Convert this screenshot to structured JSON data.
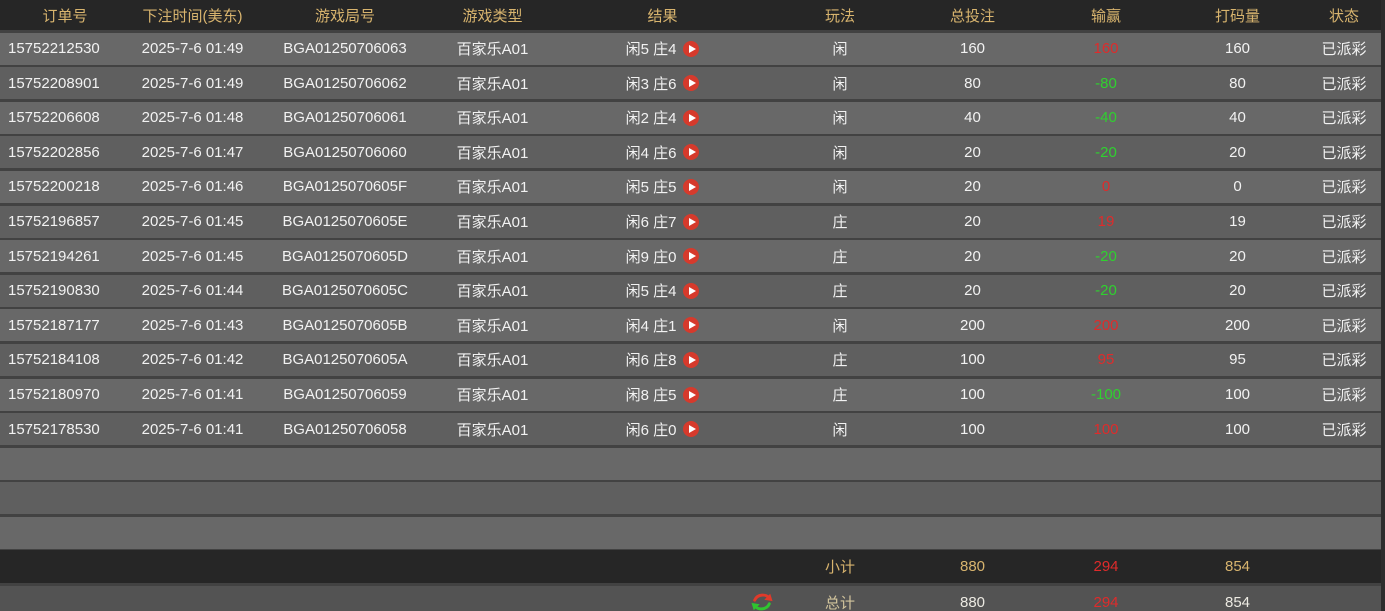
{
  "table": {
    "columns": [
      {
        "key": "order",
        "label": "订单号"
      },
      {
        "key": "time",
        "label": "下注时间(美东)"
      },
      {
        "key": "round",
        "label": "游戏局号"
      },
      {
        "key": "type",
        "label": "游戏类型"
      },
      {
        "key": "result",
        "label": "结果"
      },
      {
        "key": "play",
        "label": "玩法"
      },
      {
        "key": "bet",
        "label": "总投注"
      },
      {
        "key": "winloss",
        "label": "输赢"
      },
      {
        "key": "wager",
        "label": "打码量"
      },
      {
        "key": "status",
        "label": "状态"
      }
    ],
    "rows": [
      {
        "order": "15752212530",
        "time": "2025-7-6 01:49",
        "round": "BGA01250706063",
        "type": "百家乐A01",
        "result": "闲5 庄4",
        "play": "闲",
        "bet": "160",
        "winloss": "160",
        "wager": "160",
        "status": "已派彩"
      },
      {
        "order": "15752208901",
        "time": "2025-7-6 01:49",
        "round": "BGA01250706062",
        "type": "百家乐A01",
        "result": "闲3 庄6",
        "play": "闲",
        "bet": "80",
        "winloss": "-80",
        "wager": "80",
        "status": "已派彩"
      },
      {
        "order": "15752206608",
        "time": "2025-7-6 01:48",
        "round": "BGA01250706061",
        "type": "百家乐A01",
        "result": "闲2 庄4",
        "play": "闲",
        "bet": "40",
        "winloss": "-40",
        "wager": "40",
        "status": "已派彩"
      },
      {
        "order": "15752202856",
        "time": "2025-7-6 01:47",
        "round": "BGA01250706060",
        "type": "百家乐A01",
        "result": "闲4 庄6",
        "play": "闲",
        "bet": "20",
        "winloss": "-20",
        "wager": "20",
        "status": "已派彩"
      },
      {
        "order": "15752200218",
        "time": "2025-7-6 01:46",
        "round": "BGA0125070605F",
        "type": "百家乐A01",
        "result": "闲5 庄5",
        "play": "闲",
        "bet": "20",
        "winloss": "0",
        "wager": "0",
        "status": "已派彩"
      },
      {
        "order": "15752196857",
        "time": "2025-7-6 01:45",
        "round": "BGA0125070605E",
        "type": "百家乐A01",
        "result": "闲6 庄7",
        "play": "庄",
        "bet": "20",
        "winloss": "19",
        "wager": "19",
        "status": "已派彩"
      },
      {
        "order": "15752194261",
        "time": "2025-7-6 01:45",
        "round": "BGA0125070605D",
        "type": "百家乐A01",
        "result": "闲9 庄0",
        "play": "庄",
        "bet": "20",
        "winloss": "-20",
        "wager": "20",
        "status": "已派彩"
      },
      {
        "order": "15752190830",
        "time": "2025-7-6 01:44",
        "round": "BGA0125070605C",
        "type": "百家乐A01",
        "result": "闲5 庄4",
        "play": "庄",
        "bet": "20",
        "winloss": "-20",
        "wager": "20",
        "status": "已派彩"
      },
      {
        "order": "15752187177",
        "time": "2025-7-6 01:43",
        "round": "BGA0125070605B",
        "type": "百家乐A01",
        "result": "闲4 庄1",
        "play": "闲",
        "bet": "200",
        "winloss": "200",
        "wager": "200",
        "status": "已派彩"
      },
      {
        "order": "15752184108",
        "time": "2025-7-6 01:42",
        "round": "BGA0125070605A",
        "type": "百家乐A01",
        "result": "闲6 庄8",
        "play": "庄",
        "bet": "100",
        "winloss": "95",
        "wager": "95",
        "status": "已派彩"
      },
      {
        "order": "15752180970",
        "time": "2025-7-6 01:41",
        "round": "BGA01250706059",
        "type": "百家乐A01",
        "result": "闲8 庄5",
        "play": "庄",
        "bet": "100",
        "winloss": "-100",
        "wager": "100",
        "status": "已派彩"
      },
      {
        "order": "15752178530",
        "time": "2025-7-6 01:41",
        "round": "BGA01250706058",
        "type": "百家乐A01",
        "result": "闲6 庄0",
        "play": "闲",
        "bet": "100",
        "winloss": "100",
        "wager": "100",
        "status": "已派彩"
      }
    ],
    "empty_row_count": 3
  },
  "summary": {
    "subtotal": {
      "label": "小计",
      "bet": "880",
      "winloss": "294",
      "wager": "854"
    },
    "total": {
      "label": "总计",
      "bet": "880",
      "winloss": "294",
      "wager": "854"
    }
  },
  "icons": {
    "replay": "play-replay-icon",
    "refresh": "swap-refresh-icon"
  },
  "colors": {
    "header_gold": "#d8b46e",
    "win_red": "#df2b2b",
    "loss_green": "#2fd12f",
    "body_text": "#f2f2f2"
  }
}
